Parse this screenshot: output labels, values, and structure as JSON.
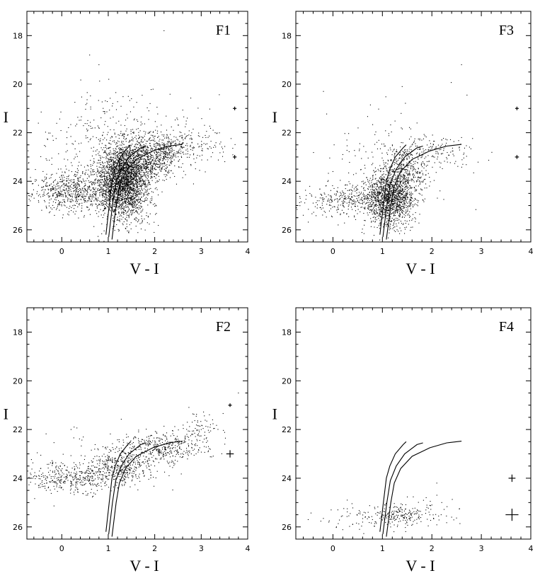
{
  "chart_data": [
    {
      "type": "scatter",
      "title": "F1",
      "xlabel": "V - I",
      "ylabel": "I",
      "xlim": [
        -0.75,
        4.0
      ],
      "ylim": [
        26.5,
        17.0
      ],
      "y_inverted": true,
      "xticks": [
        0,
        1,
        2,
        3,
        4
      ],
      "yticks": [
        18,
        20,
        22,
        24,
        26
      ],
      "density": "very high",
      "points": [
        [
          0.1,
          24.6
        ],
        [
          0.3,
          24.1
        ],
        [
          0.5,
          24.8
        ],
        [
          0.7,
          23.6
        ],
        [
          0.9,
          24.2
        ],
        [
          1.0,
          23.2
        ],
        [
          1.1,
          24.5
        ],
        [
          1.2,
          23.8
        ],
        [
          1.3,
          22.9
        ],
        [
          1.4,
          24.1
        ],
        [
          1.5,
          23.4
        ],
        [
          1.6,
          22.6
        ],
        [
          1.7,
          23.9
        ],
        [
          1.8,
          23.1
        ],
        [
          2.0,
          22.7
        ],
        [
          2.2,
          22.5
        ],
        [
          2.5,
          22.3
        ],
        [
          2.8,
          22.4
        ],
        [
          3.1,
          22.2
        ],
        [
          -0.3,
          24.5
        ],
        [
          -0.5,
          24.8
        ],
        [
          0.6,
          18.8
        ],
        [
          0.8,
          19.2
        ],
        [
          2.2,
          17.8
        ],
        [
          1.5,
          20.6
        ],
        [
          1.9,
          20.8
        ],
        [
          2.7,
          21.4
        ],
        [
          3.3,
          22.0
        ],
        [
          1.3,
          25.0
        ],
        [
          0.9,
          25.2
        ],
        [
          1.2,
          24.9
        ],
        [
          1.6,
          24.6
        ]
      ],
      "isochrones": [
        [
          [
            0.95,
            26.2
          ],
          [
            1.02,
            25.0
          ],
          [
            1.08,
            24.0
          ],
          [
            1.15,
            23.5
          ],
          [
            1.26,
            23.0
          ],
          [
            1.42,
            22.62
          ],
          [
            1.48,
            22.5
          ]
        ],
        [
          [
            1.01,
            26.3
          ],
          [
            1.09,
            25.0
          ],
          [
            1.16,
            24.1
          ],
          [
            1.28,
            23.5
          ],
          [
            1.45,
            23.0
          ],
          [
            1.7,
            22.62
          ],
          [
            1.82,
            22.55
          ]
        ],
        [
          [
            1.08,
            26.4
          ],
          [
            1.17,
            25.0
          ],
          [
            1.24,
            24.2
          ],
          [
            1.37,
            23.6
          ],
          [
            1.6,
            23.1
          ],
          [
            1.96,
            22.75
          ],
          [
            2.3,
            22.55
          ],
          [
            2.6,
            22.48
          ]
        ]
      ],
      "error_bars": [
        {
          "x": 3.72,
          "y": 21.0,
          "xerr": 0.03,
          "yerr": 0.05
        },
        {
          "x": 3.72,
          "y": 23.0,
          "xerr": 0.04,
          "yerr": 0.08
        }
      ]
    },
    {
      "type": "scatter",
      "title": "F3",
      "xlabel": "V - I",
      "ylabel": "I",
      "xlim": [
        -0.75,
        4.0
      ],
      "ylim": [
        26.5,
        17.0
      ],
      "y_inverted": true,
      "xticks": [
        0,
        1,
        2,
        3,
        4
      ],
      "yticks": [
        18,
        20,
        22,
        24,
        26
      ],
      "density": "high",
      "points": [
        [
          0.9,
          25.0
        ],
        [
          1.0,
          24.6
        ],
        [
          1.1,
          24.2
        ],
        [
          1.2,
          23.8
        ],
        [
          1.3,
          23.3
        ],
        [
          1.4,
          22.9
        ],
        [
          1.5,
          22.7
        ],
        [
          1.6,
          22.5
        ],
        [
          0.6,
          24.8
        ],
        [
          0.2,
          25.0
        ],
        [
          -0.2,
          25.1
        ],
        [
          -0.4,
          24.9
        ],
        [
          0.4,
          24.4
        ],
        [
          1.8,
          23.0
        ],
        [
          2.0,
          22.6
        ],
        [
          2.2,
          22.3
        ],
        [
          1.7,
          21.6
        ],
        [
          1.4,
          20.1
        ],
        [
          2.6,
          19.2
        ],
        [
          0.0,
          23.6
        ],
        [
          1.0,
          25.3
        ],
        [
          1.2,
          25.1
        ],
        [
          2.6,
          22.2
        ]
      ],
      "isochrones": [
        [
          [
            0.95,
            26.2
          ],
          [
            1.02,
            25.0
          ],
          [
            1.08,
            24.0
          ],
          [
            1.15,
            23.5
          ],
          [
            1.26,
            23.0
          ],
          [
            1.42,
            22.62
          ],
          [
            1.48,
            22.5
          ]
        ],
        [
          [
            1.01,
            26.3
          ],
          [
            1.09,
            25.0
          ],
          [
            1.16,
            24.1
          ],
          [
            1.28,
            23.5
          ],
          [
            1.45,
            23.0
          ],
          [
            1.7,
            22.62
          ],
          [
            1.82,
            22.55
          ]
        ],
        [
          [
            1.08,
            26.4
          ],
          [
            1.17,
            25.0
          ],
          [
            1.24,
            24.2
          ],
          [
            1.37,
            23.6
          ],
          [
            1.6,
            23.1
          ],
          [
            1.96,
            22.75
          ],
          [
            2.3,
            22.55
          ],
          [
            2.6,
            22.48
          ]
        ]
      ],
      "error_bars": [
        {
          "x": 3.72,
          "y": 21.0,
          "xerr": 0.03,
          "yerr": 0.05
        },
        {
          "x": 3.72,
          "y": 23.0,
          "xerr": 0.04,
          "yerr": 0.08
        }
      ]
    },
    {
      "type": "scatter",
      "title": "F2",
      "xlabel": "V - I",
      "ylabel": "I",
      "xlim": [
        -0.75,
        4.0
      ],
      "ylim": [
        26.5,
        17.0
      ],
      "y_inverted": true,
      "xticks": [
        0,
        1,
        2,
        3,
        4
      ],
      "yticks": [
        18,
        20,
        22,
        24,
        26
      ],
      "density": "medium",
      "points": [
        [
          -0.5,
          24.3
        ],
        [
          -0.2,
          24.1
        ],
        [
          0.1,
          24.0
        ],
        [
          0.4,
          23.9
        ],
        [
          0.7,
          23.8
        ],
        [
          1.0,
          23.6
        ],
        [
          1.3,
          23.3
        ],
        [
          1.6,
          23.1
        ],
        [
          1.9,
          22.9
        ],
        [
          2.2,
          22.6
        ],
        [
          2.5,
          22.4
        ],
        [
          2.8,
          22.2
        ],
        [
          3.0,
          22.0
        ],
        [
          3.2,
          21.8
        ],
        [
          1.2,
          24.4
        ],
        [
          0.8,
          24.3
        ],
        [
          3.8,
          20.5
        ],
        [
          3.6,
          21.0
        ],
        [
          0.2,
          22.0
        ],
        [
          2.3,
          23.4
        ]
      ],
      "isochrones": [
        [
          [
            0.95,
            26.2
          ],
          [
            1.02,
            25.0
          ],
          [
            1.08,
            24.0
          ],
          [
            1.15,
            23.5
          ],
          [
            1.26,
            23.0
          ],
          [
            1.42,
            22.62
          ],
          [
            1.48,
            22.5
          ]
        ],
        [
          [
            1.01,
            26.3
          ],
          [
            1.09,
            25.0
          ],
          [
            1.16,
            24.1
          ],
          [
            1.28,
            23.5
          ],
          [
            1.45,
            23.0
          ],
          [
            1.7,
            22.62
          ],
          [
            1.82,
            22.55
          ]
        ],
        [
          [
            1.08,
            26.4
          ],
          [
            1.17,
            25.0
          ],
          [
            1.24,
            24.2
          ],
          [
            1.37,
            23.6
          ],
          [
            1.6,
            23.1
          ],
          [
            1.96,
            22.75
          ],
          [
            2.3,
            22.55
          ],
          [
            2.6,
            22.48
          ]
        ]
      ],
      "error_bars": [
        {
          "x": 3.62,
          "y": 21.0,
          "xerr": 0.03,
          "yerr": 0.05
        },
        {
          "x": 3.62,
          "y": 23.0,
          "xerr": 0.08,
          "yerr": 0.15
        }
      ]
    },
    {
      "type": "scatter",
      "title": "F4",
      "xlabel": "V - I",
      "ylabel": "I",
      "xlim": [
        -0.75,
        4.0
      ],
      "ylim": [
        26.5,
        17.0
      ],
      "y_inverted": true,
      "xticks": [
        0,
        1,
        2,
        3,
        4
      ],
      "yticks": [
        18,
        20,
        22,
        24,
        26
      ],
      "density": "low",
      "points": [
        [
          0.8,
          25.7
        ],
        [
          1.0,
          25.5
        ],
        [
          1.2,
          25.8
        ],
        [
          1.4,
          25.4
        ],
        [
          1.6,
          25.6
        ],
        [
          1.8,
          25.5
        ],
        [
          2.0,
          25.1
        ],
        [
          2.2,
          25.0
        ],
        [
          0.4,
          25.9
        ],
        [
          0.1,
          25.3
        ],
        [
          -0.5,
          25.7
        ],
        [
          1.1,
          25.9
        ],
        [
          1.3,
          25.2
        ],
        [
          2.1,
          24.2
        ],
        [
          2.4,
          25.6
        ]
      ],
      "isochrones": [
        [
          [
            0.95,
            26.2
          ],
          [
            1.02,
            25.0
          ],
          [
            1.08,
            24.0
          ],
          [
            1.15,
            23.5
          ],
          [
            1.26,
            23.0
          ],
          [
            1.42,
            22.62
          ],
          [
            1.48,
            22.5
          ]
        ],
        [
          [
            1.01,
            26.3
          ],
          [
            1.09,
            25.0
          ],
          [
            1.16,
            24.1
          ],
          [
            1.28,
            23.5
          ],
          [
            1.45,
            23.0
          ],
          [
            1.7,
            22.62
          ],
          [
            1.82,
            22.55
          ]
        ],
        [
          [
            1.08,
            26.4
          ],
          [
            1.17,
            25.0
          ],
          [
            1.24,
            24.2
          ],
          [
            1.37,
            23.6
          ],
          [
            1.6,
            23.1
          ],
          [
            1.96,
            22.75
          ],
          [
            2.3,
            22.55
          ],
          [
            2.6,
            22.48
          ]
        ]
      ],
      "error_bars": [
        {
          "x": 3.62,
          "y": 24.0,
          "xerr": 0.07,
          "yerr": 0.15
        },
        {
          "x": 3.62,
          "y": 25.5,
          "xerr": 0.13,
          "yerr": 0.25
        }
      ]
    }
  ]
}
